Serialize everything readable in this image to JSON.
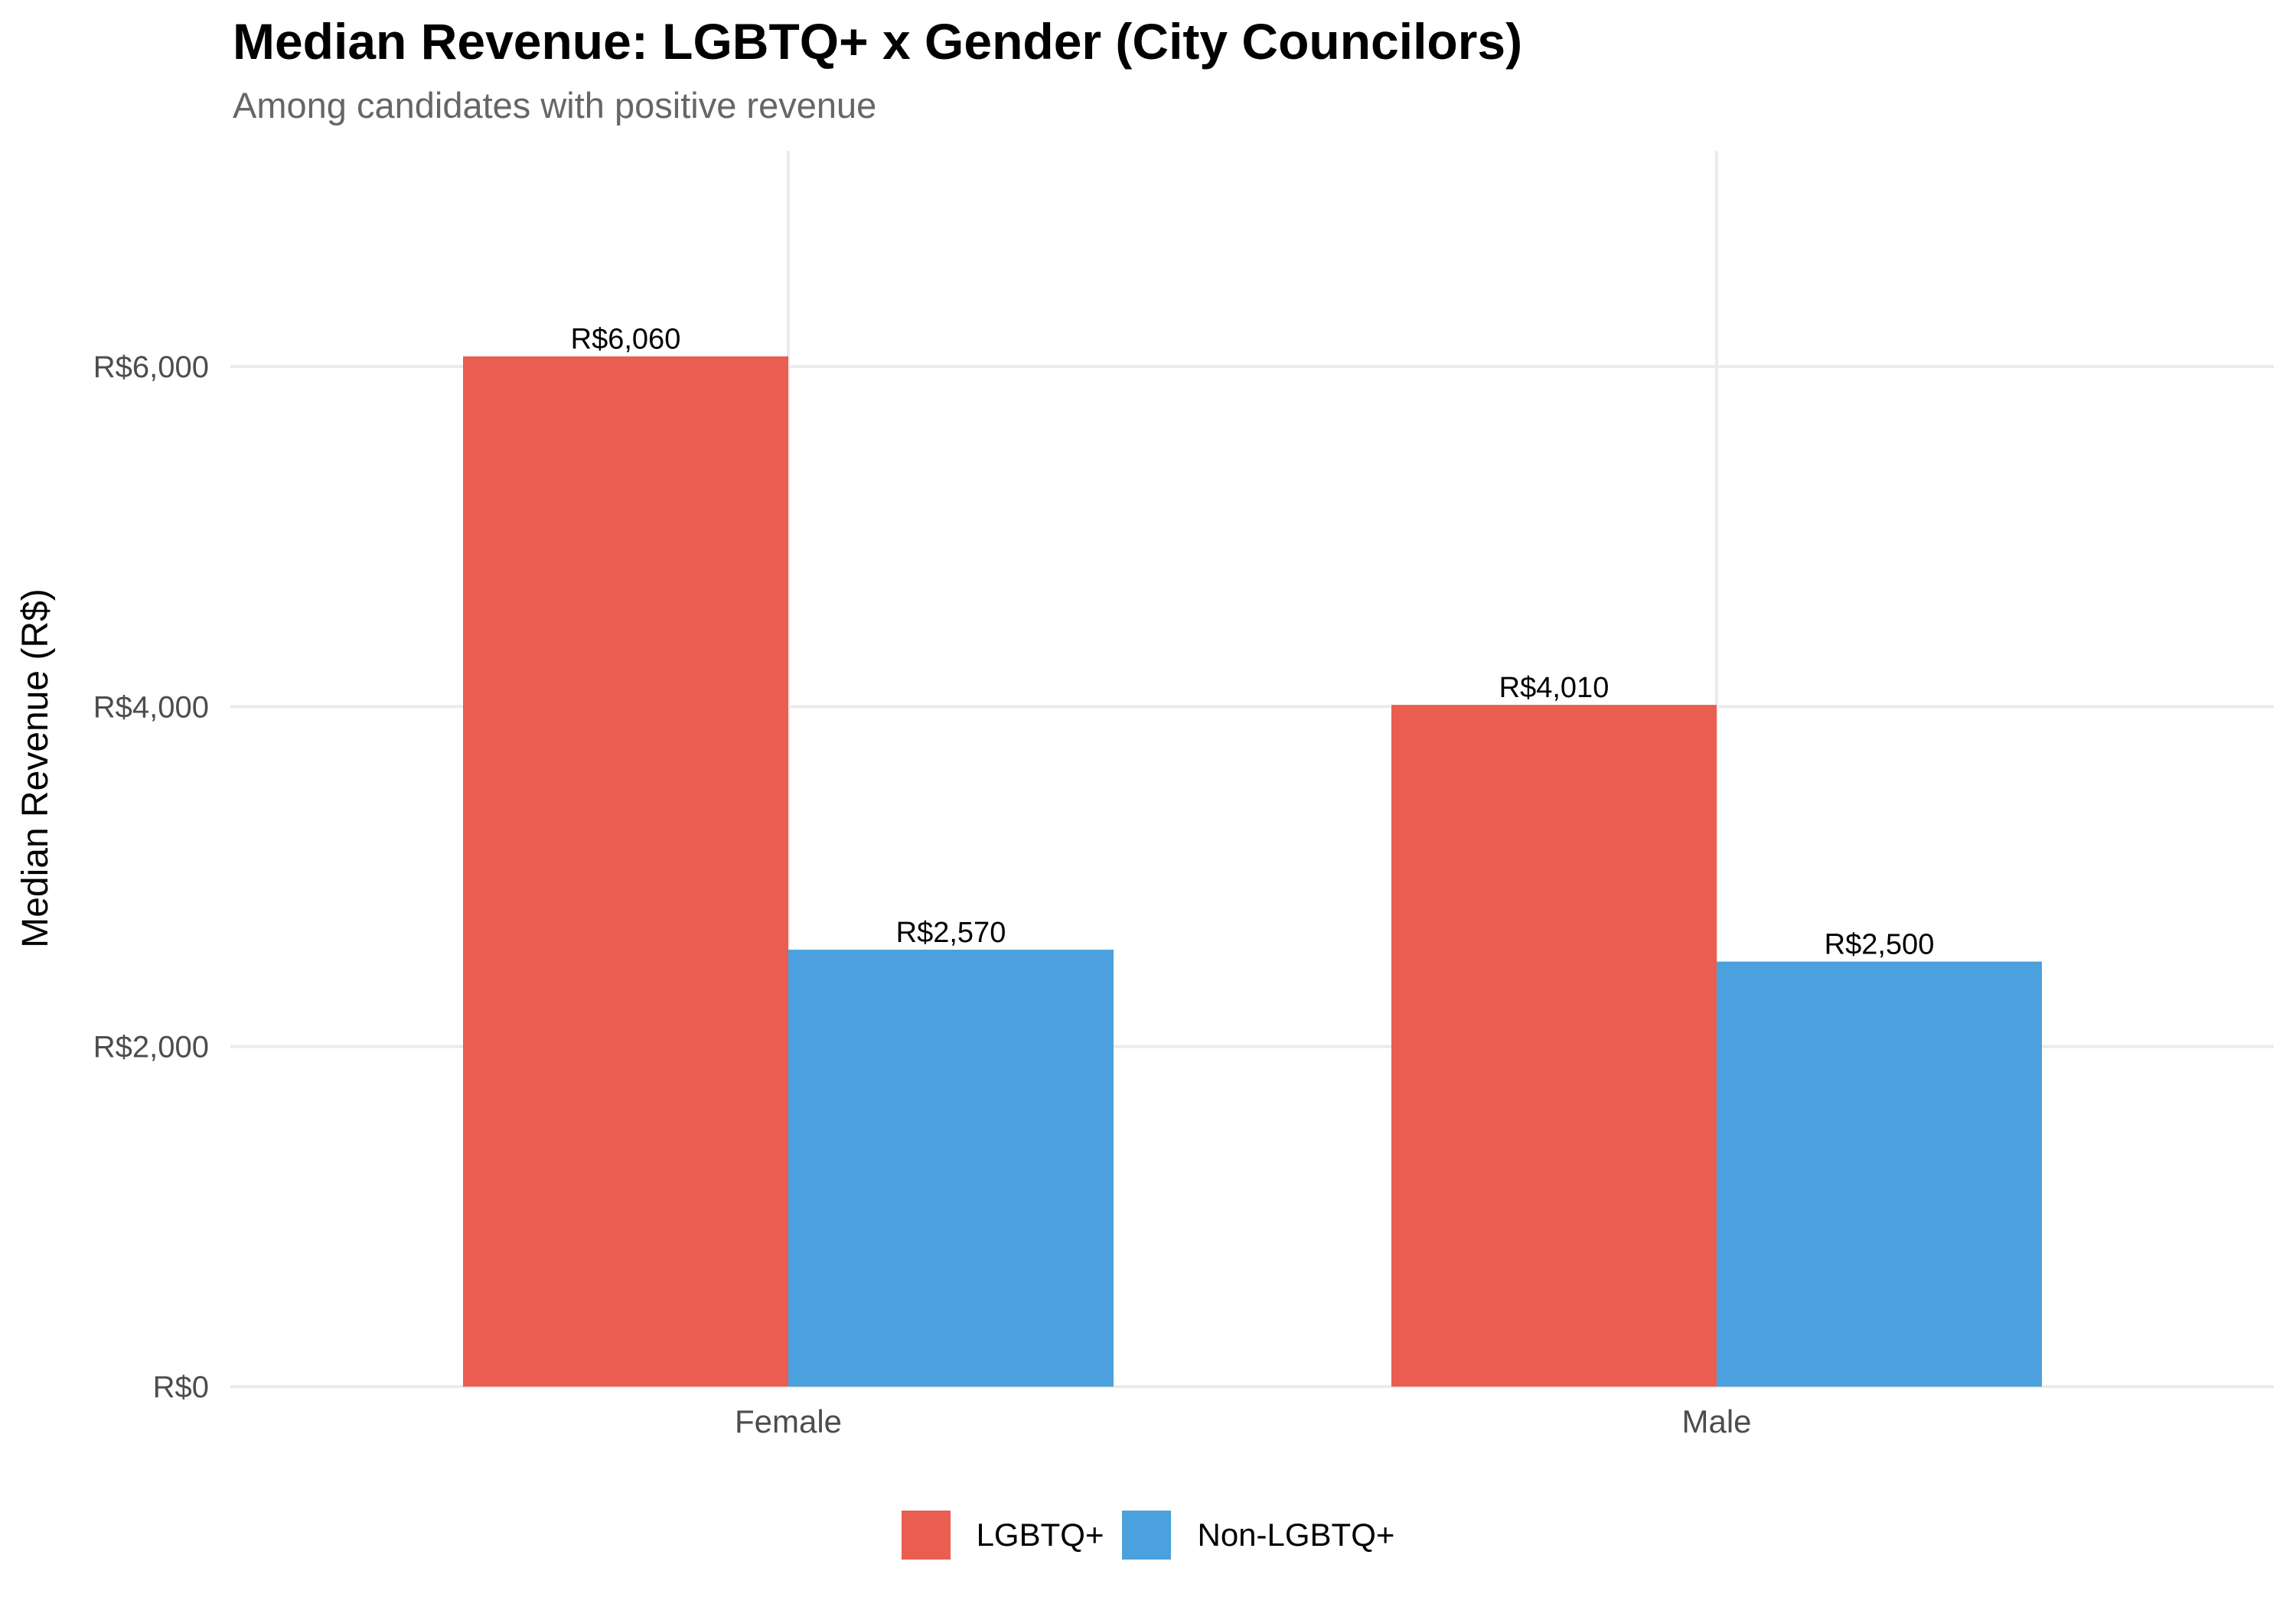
{
  "chart_data": {
    "type": "bar",
    "title": "Median Revenue: LGBTQ+ x Gender (City Councilors)",
    "subtitle": "Among candidates with positive revenue",
    "xlabel": "",
    "ylabel": "Median Revenue (R$)",
    "categories": [
      "Female",
      "Male"
    ],
    "series": [
      {
        "name": "LGBTQ+",
        "color": "#E95E50",
        "values": [
          6060,
          4010
        ],
        "labels": [
          "R$6,060",
          "R$4,010"
        ]
      },
      {
        "name": "Non-LGBTQ+",
        "color": "#4AA1DE",
        "values": [
          2570,
          2500
        ],
        "labels": [
          "R$2,570",
          "R$2,500"
        ]
      }
    ],
    "ylim": [
      0,
      7050
    ],
    "yticks": [
      0,
      2000,
      4000,
      6000
    ],
    "ytick_labels": [
      "R$0",
      "R$2,000",
      "R$4,000",
      "R$6,000"
    ],
    "grid": true,
    "legend_position": "bottom"
  }
}
